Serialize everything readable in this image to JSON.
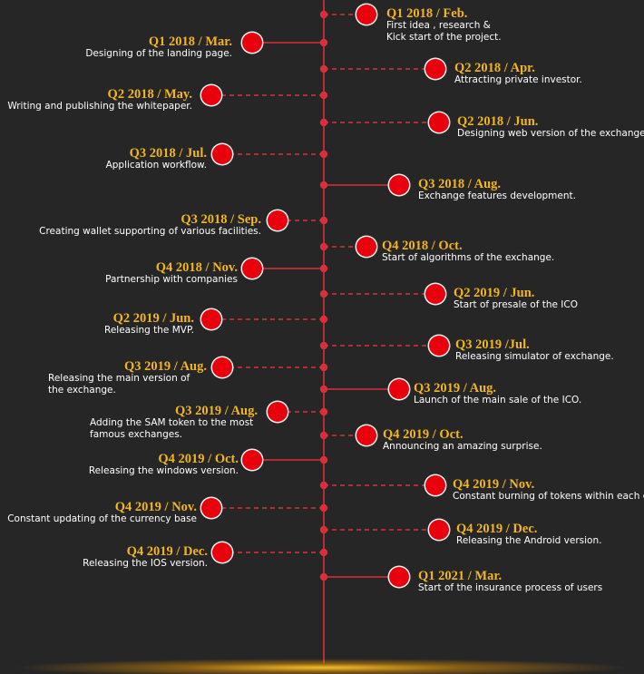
{
  "timeline": {
    "colors": {
      "line": "#d8303a",
      "node": "#e8000c",
      "dot": "#d8303a",
      "date": "#f2b621",
      "text": "#ffffff",
      "background": "#262626"
    },
    "milestones": [
      {
        "side": "right",
        "date": "Q1 2018 / Feb.",
        "description": "First idea , research & Kick start of  the project.",
        "connector": "dashed"
      },
      {
        "side": "left",
        "date": "Q1 2018 / Mar.",
        "description": "Designing of the landing page.",
        "connector": "solid"
      },
      {
        "side": "right",
        "date": "Q2 2018 / Apr.",
        "description": "Attracting private investor.",
        "connector": "dashed"
      },
      {
        "side": "left",
        "date": "Q2 2018 / May.",
        "description": "Writing and publishing the whitepaper.",
        "connector": "dashed"
      },
      {
        "side": "right",
        "date": "Q2 2018 / Jun.",
        "description": "Designing web version of the exchange.",
        "connector": "dashed"
      },
      {
        "side": "left",
        "date": "Q3 2018 / Jul.",
        "description": "Application workflow.",
        "connector": "dashed"
      },
      {
        "side": "right",
        "date": "Q3 2018 / Aug.",
        "description": "Exchange features development.",
        "connector": "solid"
      },
      {
        "side": "left",
        "date": "Q3 2018 / Sep.",
        "description": "Creating wallet supporting of various facilities.",
        "connector": "dashed"
      },
      {
        "side": "right",
        "date": "Q4 2018 / Oct.",
        "description": "Start of algorithms of the exchange.",
        "connector": "dashed"
      },
      {
        "side": "left",
        "date": "Q4 2018 / Nov.",
        "description": "Partnership with companies",
        "connector": "solid"
      },
      {
        "side": "right",
        "date": "Q2 2019 / Jun.",
        "description": "Start of presale of the ICO",
        "connector": "dashed"
      },
      {
        "side": "left",
        "date": "Q2 2019 / Jun.",
        "description": "Releasing the MVP.",
        "connector": "dashed"
      },
      {
        "side": "right",
        "date": "Q3 2019 /Jul.",
        "description": "Releasing simulator of exchange.",
        "connector": "dashed"
      },
      {
        "side": "left",
        "date": "Q3 2019 / Aug.",
        "description": "Releasing the main version of the exchange.",
        "connector": "dashed"
      },
      {
        "side": "right",
        "date": "Q3 2019 / Aug.",
        "description": "Launch of the main sale of the ICO.",
        "connector": "solid"
      },
      {
        "side": "left",
        "date": "Q3 2019 / Aug.",
        "description": "Adding the SAM token to the most famous exchanges.",
        "connector": "dashed"
      },
      {
        "side": "right",
        "date": "Q4 2019 / Oct.",
        "description": "Announcing an amazing surprise.",
        "connector": "dashed"
      },
      {
        "side": "left",
        "date": "Q4 2019 / Oct.",
        "description": "Releasing the windows version.",
        "connector": "solid"
      },
      {
        "side": "right",
        "date": "Q4 2019 / Nov.",
        "description": "Constant burning of tokens within each quarter",
        "connector": "dashed"
      },
      {
        "side": "left",
        "date": "Q4 2019 / Nov.",
        "description": "Constant updating of the currency base",
        "connector": "dashed"
      },
      {
        "side": "right",
        "date": "Q4 2019 / Dec.",
        "description": "Releasing the Android version.",
        "connector": "dashed"
      },
      {
        "side": "left",
        "date": "Q4 2019 / Dec.",
        "description": "Releasing the IOS version.",
        "connector": "dashed"
      },
      {
        "side": "right",
        "date": "Q1 2021 / Mar.",
        "description": "Start of the insurance process of users",
        "connector": "solid"
      }
    ]
  }
}
